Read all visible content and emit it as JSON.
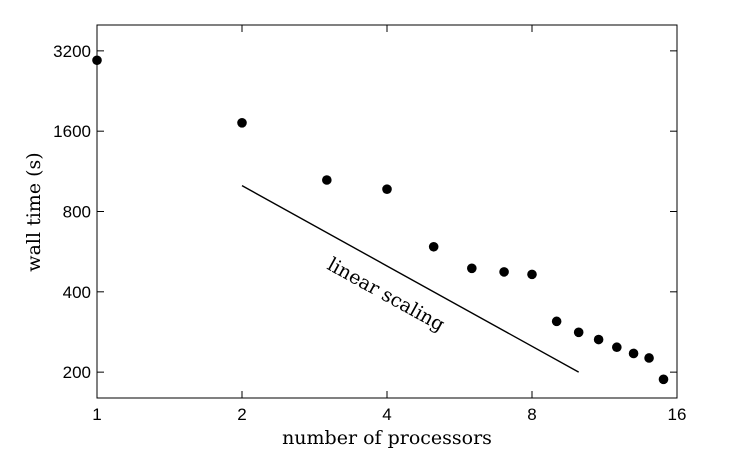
{
  "chart_data": {
    "type": "scatter",
    "title": "",
    "xlabel": "number of processors",
    "ylabel": "wall time (s)",
    "xscale": "log2",
    "yscale": "log2",
    "xlim": [
      1,
      16
    ],
    "ylim": [
      160,
      4000
    ],
    "xticks": [
      1,
      2,
      4,
      8,
      16
    ],
    "yticks": [
      200,
      400,
      800,
      1600,
      3200
    ],
    "grid": false,
    "legend": "none",
    "series": [
      {
        "x": [
          1,
          2,
          3,
          4,
          5,
          6,
          7,
          8,
          9,
          10,
          11,
          12,
          13,
          14,
          15
        ],
        "y": [
          2950,
          1720,
          1050,
          970,
          590,
          490,
          475,
          465,
          310,
          282,
          265,
          248,
          235,
          226,
          188
        ]
      }
    ],
    "reference_line": {
      "label": "linear scaling",
      "x": [
        2,
        10
      ],
      "y": [
        1000,
        200
      ]
    }
  }
}
